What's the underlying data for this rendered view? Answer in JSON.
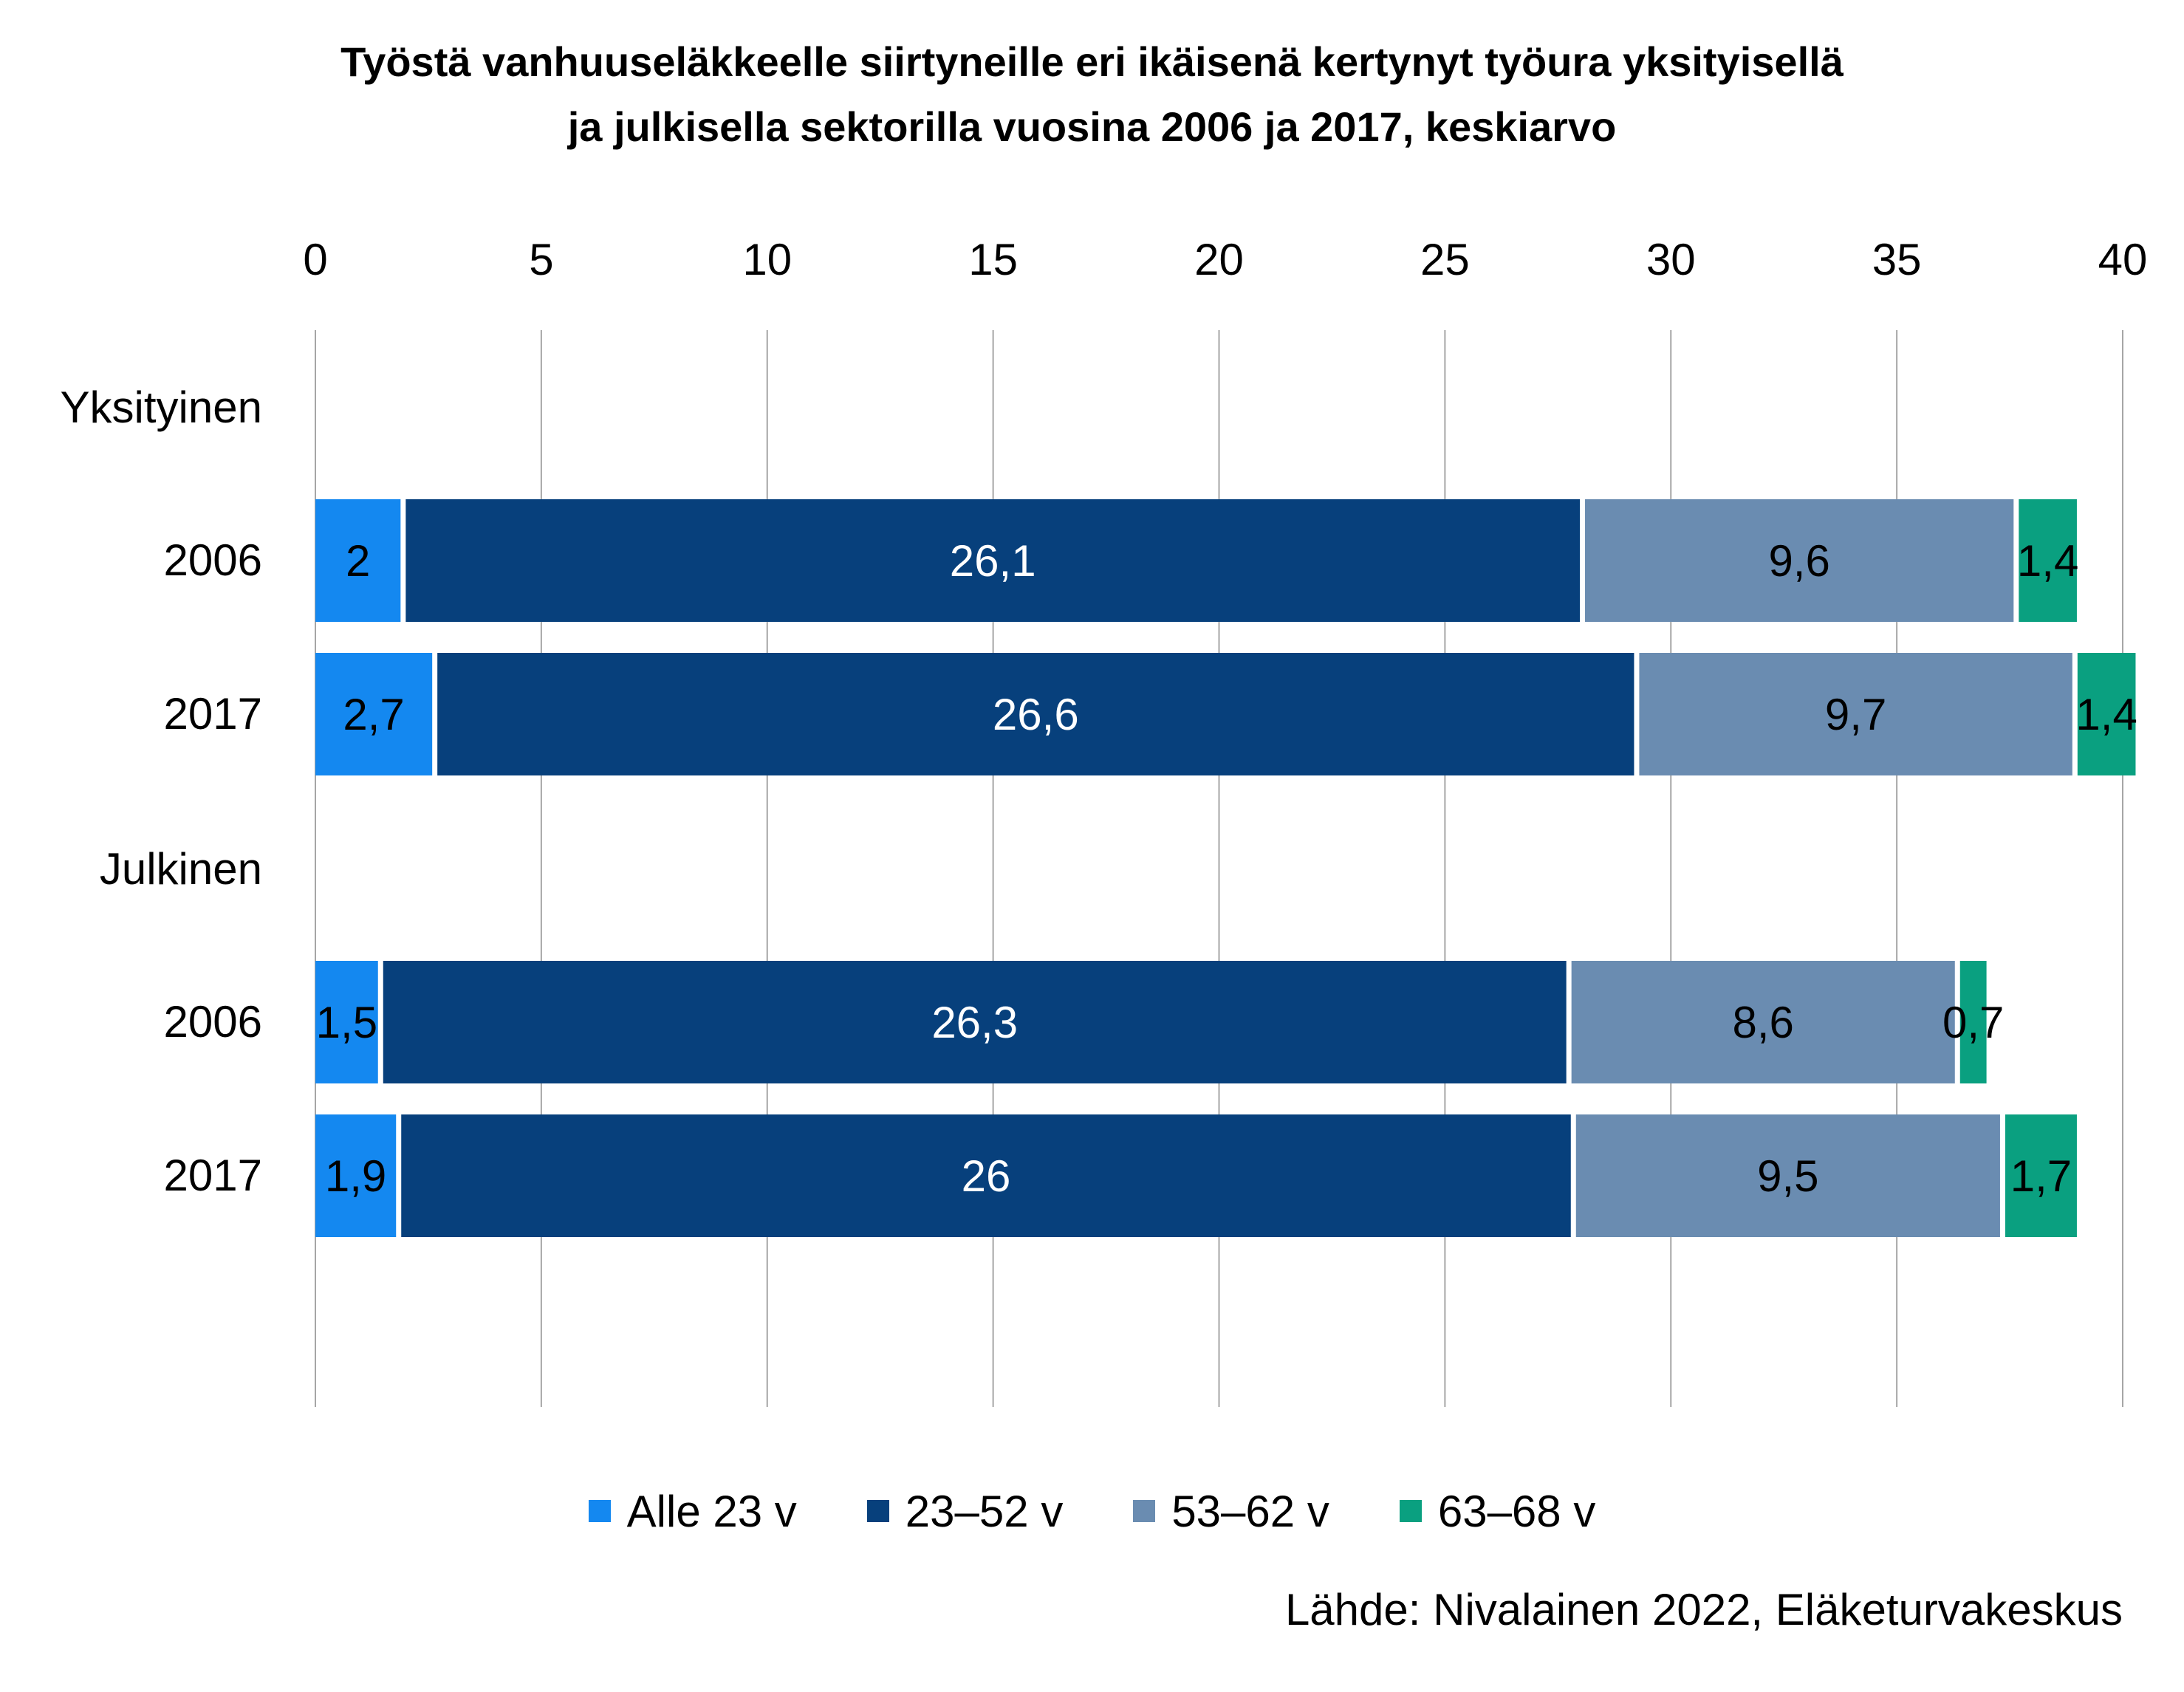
{
  "chart_data": {
    "type": "bar",
    "orientation": "horizontal",
    "stacked": true,
    "title_lines": [
      "Työstä vanhuuseläkkeelle siirtyneille eri ikäisenä kertynyt työura yksityisellä",
      "ja julkisella sektorilla vuosina 2006 ja 2017, keskiarvo"
    ],
    "groups": [
      {
        "label": "Yksityinen",
        "categories": [
          "2006",
          "2017"
        ]
      },
      {
        "label": "Julkinen",
        "categories": [
          "2006",
          "2017"
        ]
      }
    ],
    "categories": [
      "2006",
      "2017",
      "2006",
      "2017"
    ],
    "series": [
      {
        "name": "Alle 23 v",
        "color": "#1488f0",
        "values": [
          2,
          2.7,
          1.5,
          1.9
        ],
        "labels": [
          "2",
          "2,7",
          "1,5",
          "1,9"
        ],
        "label_color": "#000000"
      },
      {
        "name": "23–52 v",
        "color": "#07407c",
        "values": [
          26.1,
          26.6,
          26.3,
          26
        ],
        "labels": [
          "26,1",
          "26,6",
          "26,3",
          "26"
        ],
        "label_color": "#ffffff"
      },
      {
        "name": "53–62 v",
        "color": "#6a8cb1",
        "values": [
          9.6,
          9.7,
          8.6,
          9.5
        ],
        "labels": [
          "9,6",
          "9,7",
          "8,6",
          "9,5"
        ],
        "label_color": "#000000"
      },
      {
        "name": "63–68 v",
        "color": "#0aa080",
        "values": [
          1.4,
          1.4,
          0.7,
          1.7
        ],
        "labels": [
          "1,4",
          "1,4",
          "0,7",
          "1,7"
        ],
        "label_color": "#000000"
      }
    ],
    "xlim": [
      0,
      40
    ],
    "xticks": [
      0,
      5,
      10,
      15,
      20,
      25,
      30,
      35,
      40
    ],
    "axis_position": "top",
    "grid": true,
    "legend_position": "bottom"
  },
  "source": "Lähde: Nivalainen 2022, Eläketurvakeskus"
}
